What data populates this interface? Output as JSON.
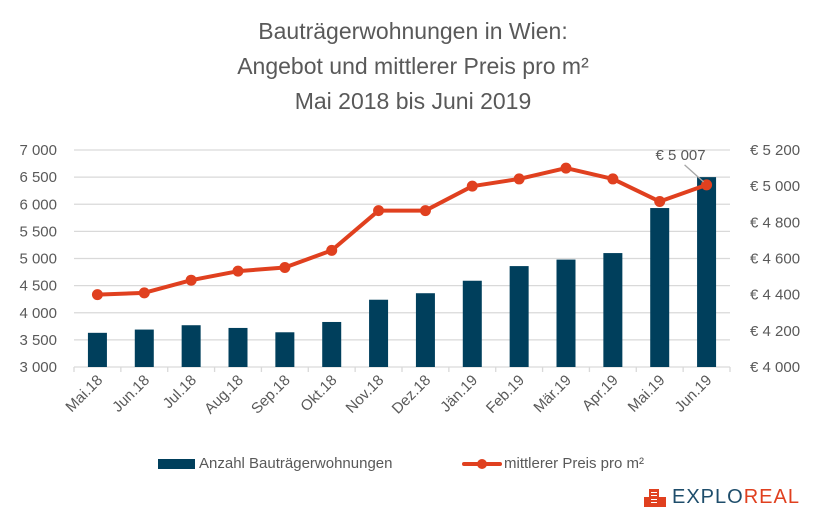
{
  "chart_data": {
    "type": "bar+line",
    "title": [
      "Bauträgerwohnungen in Wien:",
      "Angebot und mittlerer Preis pro m²",
      "Mai 2018 bis Juni 2019"
    ],
    "categories": [
      "Mai.18",
      "Jun.18",
      "Jul.18",
      "Aug.18",
      "Sep.18",
      "Okt.18",
      "Nov.18",
      "Dez.18",
      "Jän.19",
      "Feb.19",
      "Mär.19",
      "Apr.19",
      "Mai.19",
      "Jun.19"
    ],
    "series": [
      {
        "name": "Anzahl Bauträgerwohnungen",
        "type": "bar",
        "axis": "left",
        "color": "#003f5c",
        "values": [
          3630,
          3690,
          3770,
          3720,
          3640,
          3830,
          4240,
          4360,
          4590,
          4860,
          4980,
          5100,
          5930,
          6500
        ]
      },
      {
        "name": "mittlerer Preis pro m²",
        "type": "line",
        "axis": "right",
        "color": "#e0401f",
        "values": [
          4400,
          4410,
          4480,
          4530,
          4550,
          4645,
          4865,
          4865,
          5000,
          5040,
          5100,
          5040,
          4915,
          5007
        ]
      }
    ],
    "y_left": {
      "range": [
        3000,
        7000
      ],
      "ticks": [
        "3 000",
        "3 500",
        "4 000",
        "4 500",
        "5 000",
        "5 500",
        "6 000",
        "6 500",
        "7 000"
      ],
      "tick_values": [
        3000,
        3500,
        4000,
        4500,
        5000,
        5500,
        6000,
        6500,
        7000
      ]
    },
    "y_right": {
      "range": [
        4000,
        5200
      ],
      "ticks": [
        "€ 4 000",
        "€ 4 200",
        "€ 4 400",
        "€ 4 600",
        "€ 4 800",
        "€ 5 000",
        "€ 5 200"
      ],
      "tick_values": [
        4000,
        4200,
        4400,
        4600,
        4800,
        5000,
        5200
      ]
    },
    "annotations": [
      {
        "category": "Jun.19",
        "series": "mittlerer Preis pro m²",
        "text": "€ 5 007"
      }
    ],
    "grid": true,
    "legend": "bottom-center",
    "xlabel": "",
    "ylabel": ""
  },
  "legend": {
    "bar_label": "Anzahl Bauträgerwohnungen",
    "line_label": "mittlerer Preis pro m²"
  },
  "logo": {
    "part1": "EXPLO",
    "part2": "REAL"
  }
}
